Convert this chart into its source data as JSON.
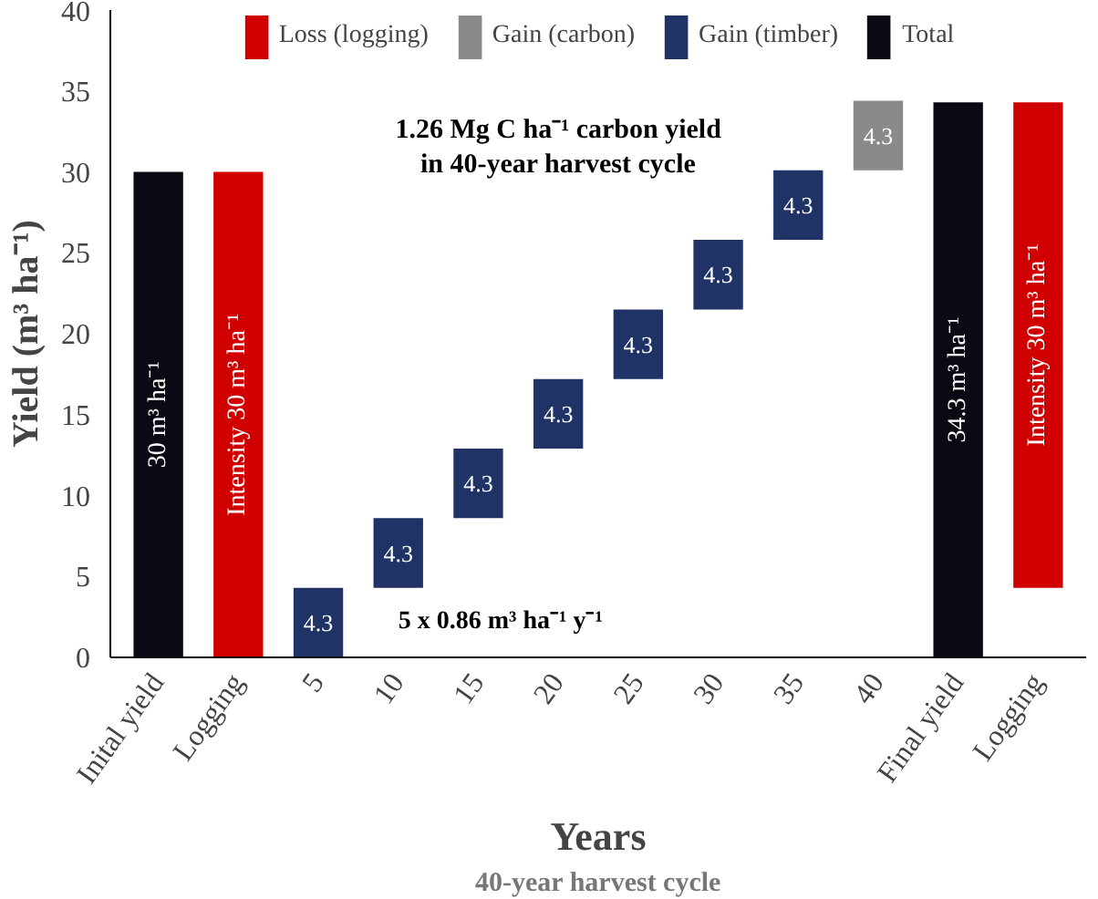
{
  "chart_data": {
    "type": "bar",
    "ylabel": "Yield (m³ ha⁻¹)",
    "xlabel": "Years",
    "categories": [
      "Inital yield",
      "Logging",
      "5",
      "10",
      "15",
      "20",
      "25",
      "30",
      "35",
      "40",
      "Final yield",
      "Logging"
    ],
    "series": [
      {
        "name": "Loss (logging)",
        "color": "#d00000",
        "base": [
          null,
          0,
          null,
          null,
          null,
          null,
          null,
          null,
          null,
          null,
          null,
          4.3
        ],
        "values": [
          null,
          30,
          null,
          null,
          null,
          null,
          null,
          null,
          null,
          null,
          null,
          30
        ],
        "value_labels": [
          null,
          "Intensity 30 m³ ha⁻¹",
          null,
          null,
          null,
          null,
          null,
          null,
          null,
          null,
          null,
          "Intensity 30 m³ ha⁻¹"
        ]
      },
      {
        "name": "Gain (carbon)",
        "color": "#8a8a8a",
        "base": [
          null,
          null,
          null,
          null,
          null,
          null,
          null,
          null,
          null,
          30.1,
          null,
          null
        ],
        "values": [
          null,
          null,
          null,
          null,
          null,
          null,
          null,
          null,
          null,
          4.3,
          null,
          null
        ],
        "value_labels": [
          null,
          null,
          null,
          null,
          null,
          null,
          null,
          null,
          null,
          "4.3",
          null,
          null
        ]
      },
      {
        "name": "Gain (timber)",
        "color": "#1f3366",
        "base": [
          null,
          null,
          0,
          4.3,
          8.6,
          12.9,
          17.2,
          21.5,
          25.8,
          null,
          null,
          null
        ],
        "values": [
          null,
          null,
          4.3,
          4.3,
          4.3,
          4.3,
          4.3,
          4.3,
          4.3,
          null,
          null,
          null
        ],
        "value_labels": [
          null,
          null,
          "4.3",
          "4.3",
          "4.3",
          "4.3",
          "4.3",
          "4.3",
          "4.3",
          null,
          null,
          null
        ]
      },
      {
        "name": "Total",
        "color": "#0a0a14",
        "base": [
          0,
          null,
          null,
          null,
          null,
          null,
          null,
          null,
          null,
          null,
          0,
          null
        ],
        "values": [
          30,
          null,
          null,
          null,
          null,
          null,
          null,
          null,
          null,
          null,
          34.3,
          null
        ],
        "value_labels": [
          "30 m³ ha⁻¹",
          null,
          null,
          null,
          null,
          null,
          null,
          null,
          null,
          null,
          "34.3 m³ ha⁻¹",
          null
        ]
      }
    ],
    "ylim": [
      0,
      40
    ],
    "yticks": [
      0,
      5,
      10,
      15,
      20,
      25,
      30,
      35,
      40
    ],
    "grid": false,
    "legend": "top",
    "annotations": [
      "1.26 Mg C ha⁻¹ carbon yield in 40-year harvest cycle",
      "5 x 0.86 m³ ha⁻¹ y⁻¹",
      "40-year harvest cycle"
    ]
  }
}
